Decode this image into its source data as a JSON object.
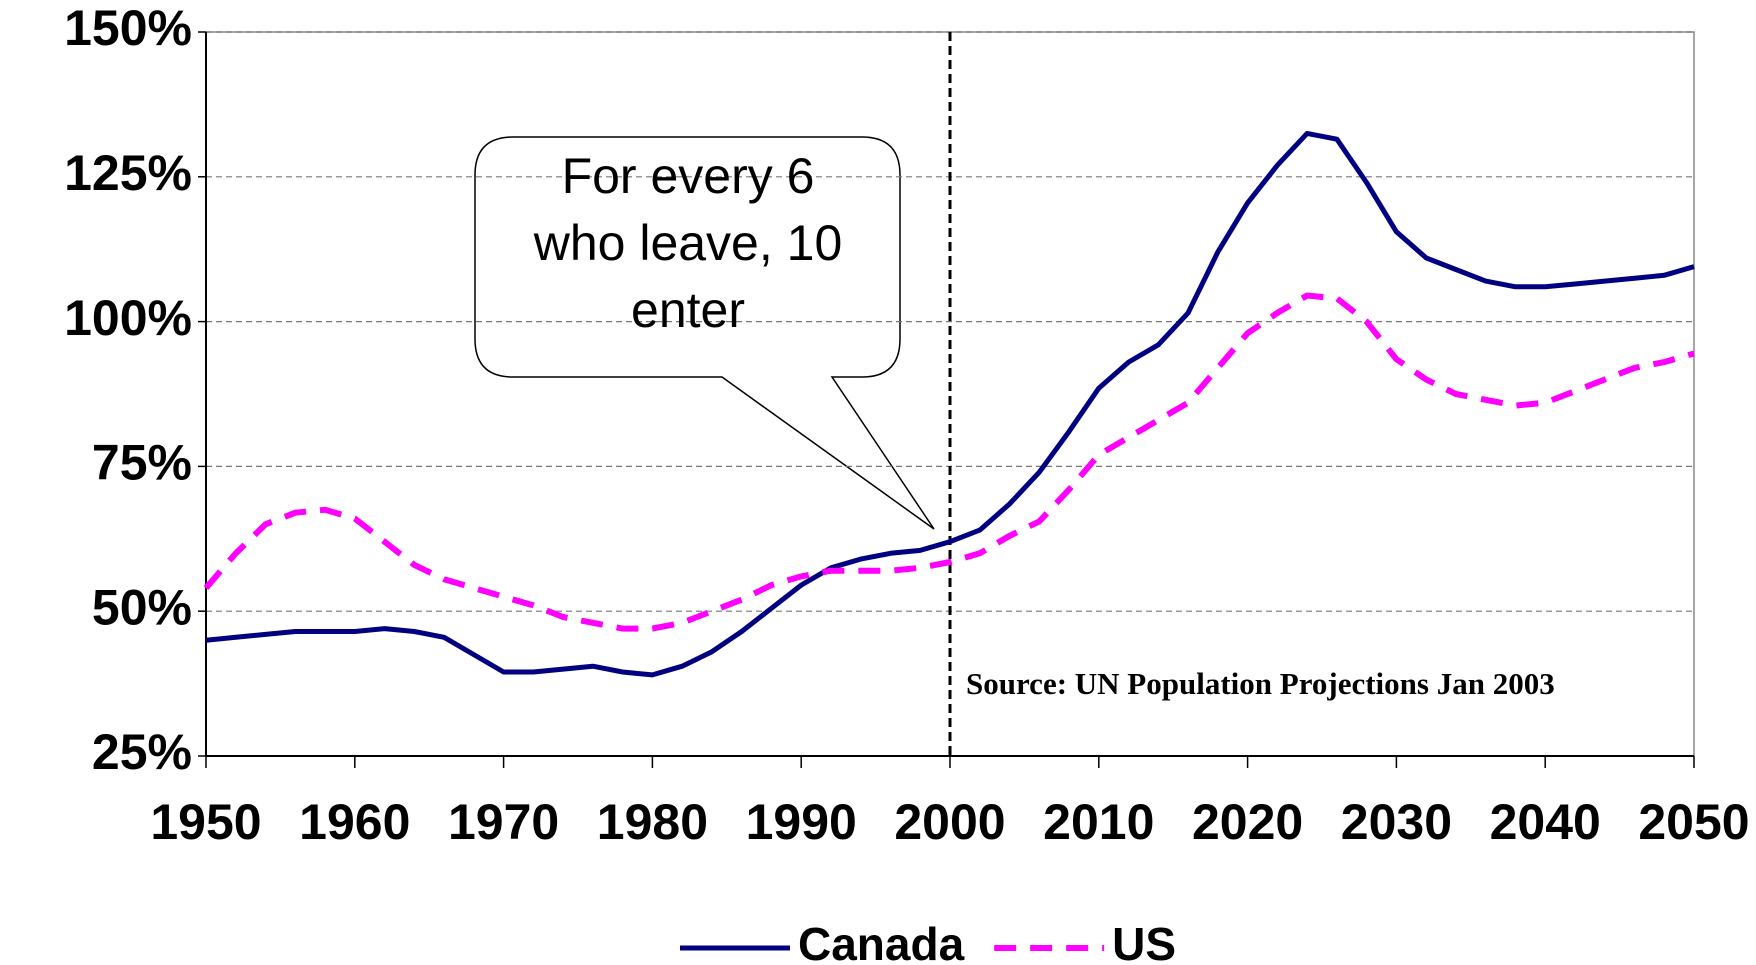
{
  "chart_data": {
    "type": "line",
    "x": [
      1950,
      1952,
      1954,
      1956,
      1958,
      1960,
      1962,
      1964,
      1966,
      1968,
      1970,
      1972,
      1974,
      1976,
      1978,
      1980,
      1982,
      1984,
      1986,
      1988,
      1990,
      1992,
      1994,
      1996,
      1998,
      2000,
      2002,
      2004,
      2006,
      2008,
      2010,
      2012,
      2014,
      2016,
      2018,
      2020,
      2022,
      2024,
      2026,
      2028,
      2030,
      2032,
      2034,
      2036,
      2038,
      2040,
      2042,
      2044,
      2046,
      2048,
      2050
    ],
    "series": [
      {
        "name": "Canada",
        "color": "#000080",
        "dash": false,
        "values": [
          45,
          45.5,
          46,
          46.5,
          46.5,
          46.5,
          47,
          46.5,
          45.5,
          42.5,
          39.5,
          39.5,
          40,
          40.5,
          39.5,
          39,
          40.5,
          43,
          46.5,
          50.5,
          54.5,
          57.5,
          59,
          60,
          60.5,
          62,
          64,
          68.5,
          74,
          81,
          88.5,
          93,
          96,
          101.5,
          112,
          120.5,
          127,
          132.5,
          131.5,
          124,
          115.5,
          111,
          109,
          107,
          106,
          106,
          106.5,
          107,
          107.5,
          108,
          109.5
        ]
      },
      {
        "name": "US",
        "color": "#ff00ff",
        "dash": true,
        "values": [
          54,
          60,
          65,
          67,
          67.5,
          66,
          62,
          58,
          55.5,
          54,
          52.5,
          51,
          49,
          48,
          47,
          47,
          48,
          50,
          52,
          54.5,
          56,
          57,
          57,
          57,
          57.5,
          58.5,
          60,
          63,
          65.5,
          71,
          77,
          80,
          83,
          86,
          92,
          98,
          101.5,
          104.5,
          104,
          100,
          93.5,
          90,
          87.5,
          86.5,
          85.5,
          86,
          88,
          90,
          92,
          93,
          94.5
        ]
      }
    ],
    "xlim": [
      1950,
      2050
    ],
    "xticks": [
      1950,
      1960,
      1970,
      1980,
      1990,
      2000,
      2010,
      2020,
      2030,
      2040,
      2050
    ],
    "ylim": [
      25,
      150
    ],
    "yticks": [
      {
        "value": 25,
        "label": "25%"
      },
      {
        "value": 50,
        "label": "50%"
      },
      {
        "value": 75,
        "label": "75%"
      },
      {
        "value": 100,
        "label": "100%"
      },
      {
        "value": 125,
        "label": "125%"
      },
      {
        "value": 150,
        "label": "150%"
      }
    ],
    "grid": true,
    "vline": 2000,
    "callout": [
      "For every 6",
      "who leave, 10",
      "enter"
    ],
    "source": "Source:  UN Population Projections Jan 2003",
    "legend": "bottom"
  }
}
